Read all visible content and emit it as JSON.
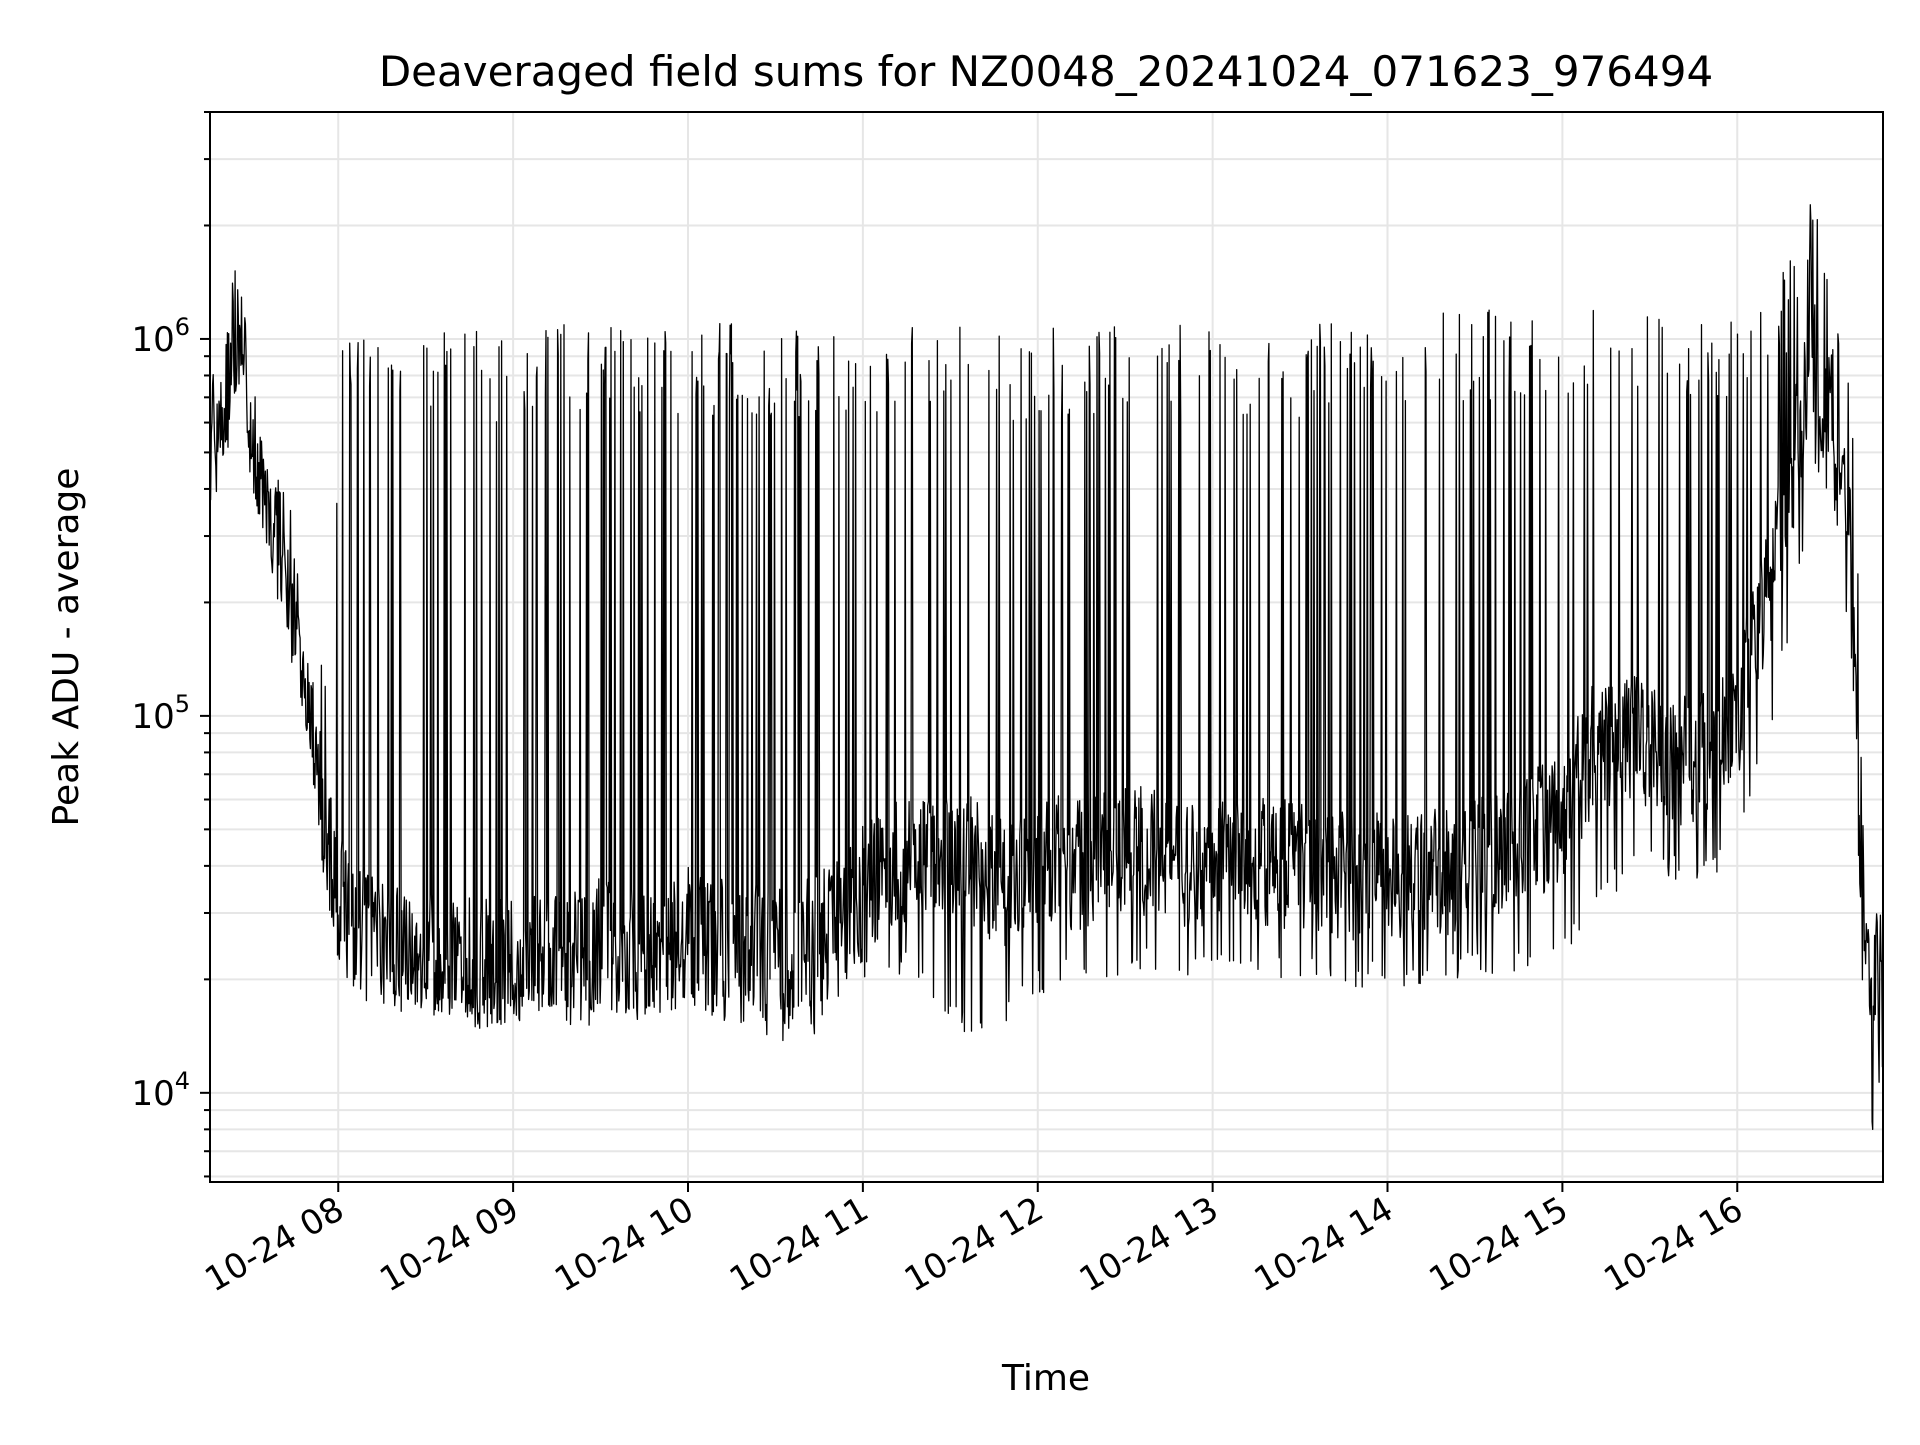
{
  "chart_data": {
    "type": "line",
    "title": "Deaveraged field sums for NZ0048_20241024_071623_976494",
    "xlabel": "Time",
    "ylabel": "Peak ADU - average",
    "yscale": "log",
    "xlim": [
      "2024-10-24 07:16",
      "2024-10-24 16:50"
    ],
    "ylim": [
      5800,
      4000000
    ],
    "grid": true,
    "legend": "none",
    "line_color": "#000000",
    "x_ticks": [
      {
        "t": "2024-10-24 08:00",
        "label": "10-24 08"
      },
      {
        "t": "2024-10-24 09:00",
        "label": "10-24 09"
      },
      {
        "t": "2024-10-24 10:00",
        "label": "10-24 10"
      },
      {
        "t": "2024-10-24 11:00",
        "label": "10-24 11"
      },
      {
        "t": "2024-10-24 12:00",
        "label": "10-24 12"
      },
      {
        "t": "2024-10-24 13:00",
        "label": "10-24 13"
      },
      {
        "t": "2024-10-24 14:00",
        "label": "10-24 14"
      },
      {
        "t": "2024-10-24 15:00",
        "label": "10-24 15"
      },
      {
        "t": "2024-10-24 16:00",
        "label": "10-24 16"
      }
    ],
    "y_ticks": [
      {
        "value": 10000,
        "base": "10",
        "exp": "4"
      },
      {
        "value": 100000,
        "base": "10",
        "exp": "5"
      },
      {
        "value": 1000000,
        "base": "10",
        "exp": "6"
      }
    ],
    "series": [
      {
        "x": [
          "2024-10-24 07:16",
          "2024-10-24 07:19",
          "2024-10-24 07:22",
          "2024-10-24 07:25",
          "2024-10-24 07:28",
          "2024-10-24 07:30",
          "2024-10-24 07:32",
          "2024-10-24 07:34",
          "2024-10-24 07:36",
          "2024-10-24 07:38",
          "2024-10-24 07:40",
          "2024-10-24 07:42",
          "2024-10-24 07:44",
          "2024-10-24 07:46",
          "2024-10-24 07:48",
          "2024-10-24 07:50",
          "2024-10-24 07:52",
          "2024-10-24 07:54",
          "2024-10-24 07:56",
          "2024-10-24 07:58",
          "2024-10-24 08:00",
          "2024-10-24 08:05",
          "2024-10-24 08:10",
          "2024-10-24 08:15",
          "2024-10-24 08:20",
          "2024-10-24 08:25",
          "2024-10-24 08:30",
          "2024-10-24 08:40",
          "2024-10-24 08:50",
          "2024-10-24 09:00",
          "2024-10-24 09:10",
          "2024-10-24 09:20",
          "2024-10-24 09:30",
          "2024-10-24 09:40",
          "2024-10-24 09:50",
          "2024-10-24 10:00",
          "2024-10-24 10:10",
          "2024-10-24 10:20",
          "2024-10-24 10:30",
          "2024-10-24 10:40",
          "2024-10-24 10:50",
          "2024-10-24 11:00",
          "2024-10-24 11:15",
          "2024-10-24 11:30",
          "2024-10-24 11:40",
          "2024-10-24 11:50",
          "2024-10-24 12:00",
          "2024-10-24 12:15",
          "2024-10-24 12:30",
          "2024-10-24 12:45",
          "2024-10-24 13:00",
          "2024-10-24 13:15",
          "2024-10-24 13:30",
          "2024-10-24 13:45",
          "2024-10-24 14:00",
          "2024-10-24 14:15",
          "2024-10-24 14:30",
          "2024-10-24 14:45",
          "2024-10-24 15:00",
          "2024-10-24 15:10",
          "2024-10-24 15:20",
          "2024-10-24 15:30",
          "2024-10-24 15:40",
          "2024-10-24 15:50",
          "2024-10-24 16:00",
          "2024-10-24 16:10",
          "2024-10-24 16:20",
          "2024-10-24 16:26",
          "2024-10-24 16:30",
          "2024-10-24 16:35",
          "2024-10-24 16:38",
          "2024-10-24 16:41",
          "2024-10-24 16:44",
          "2024-10-24 16:47",
          "2024-10-24 16:50"
        ],
        "baseline": [
          550000,
          600000,
          700000,
          1100000,
          800000,
          600000,
          500000,
          380000,
          330000,
          300000,
          280000,
          250000,
          200000,
          170000,
          140000,
          110000,
          80000,
          60000,
          48000,
          40000,
          33000,
          28000,
          26000,
          25000,
          24000,
          23000,
          24000,
          23000,
          22000,
          23000,
          24000,
          23000,
          25000,
          24000,
          24000,
          27000,
          25000,
          24000,
          24000,
          25000,
          27000,
          35000,
          42000,
          45000,
          40000,
          35000,
          42000,
          40000,
          45000,
          42000,
          40000,
          42000,
          40000,
          38000,
          37000,
          38000,
          40000,
          45000,
          55000,
          80000,
          90000,
          85000,
          75000,
          80000,
          100000,
          200000,
          500000,
          900000,
          700000,
          450000,
          300000,
          120000,
          22000,
          20000,
          20000
        ],
        "spike_top": [
          650000,
          700000,
          1000000,
          2800000,
          1200000,
          900000,
          700000,
          600000,
          500000,
          450000,
          420000,
          400000,
          350000,
          300000,
          250000,
          200000,
          180000,
          150000,
          120000,
          100000,
          1100000,
          1000000,
          1100000,
          1000000,
          1100000,
          1000000,
          1100000,
          1100000,
          1050000,
          1050000,
          1100000,
          1100000,
          1100000,
          1100000,
          1100000,
          1100000,
          1100000,
          1100000,
          1100000,
          1100000,
          1100000,
          1100000,
          1100000,
          1100000,
          1100000,
          1050000,
          1050000,
          1100000,
          1100000,
          1100000,
          1100000,
          1100000,
          1100000,
          1100000,
          1100000,
          1200000,
          1200000,
          1200000,
          1200000,
          1200000,
          1200000,
          1200000,
          1200000,
          1250000,
          1250000,
          1300000,
          1800000,
          2500000,
          1800000,
          1200000,
          800000,
          400000,
          30000,
          28000,
          28000
        ],
        "floor": [
          450000,
          480000,
          550000,
          700000,
          600000,
          450000,
          380000,
          300000,
          250000,
          230000,
          200000,
          180000,
          150000,
          120000,
          100000,
          80000,
          60000,
          45000,
          35000,
          28000,
          22000,
          20000,
          19000,
          18000,
          18000,
          17000,
          17000,
          16000,
          15000,
          15000,
          16000,
          15000,
          15000,
          15000,
          16000,
          15000,
          14000,
          14000,
          13500,
          14000,
          15000,
          20000,
          20000,
          15000,
          13000,
          15000,
          18000,
          20000,
          20000,
          21000,
          20000,
          20000,
          19000,
          19000,
          19000,
          19000,
          20000,
          20000,
          22000,
          30000,
          35000,
          40000,
          35000,
          35000,
          45000,
          80000,
          200000,
          400000,
          350000,
          250000,
          150000,
          60000,
          10000,
          7500,
          12000
        ]
      }
    ]
  }
}
